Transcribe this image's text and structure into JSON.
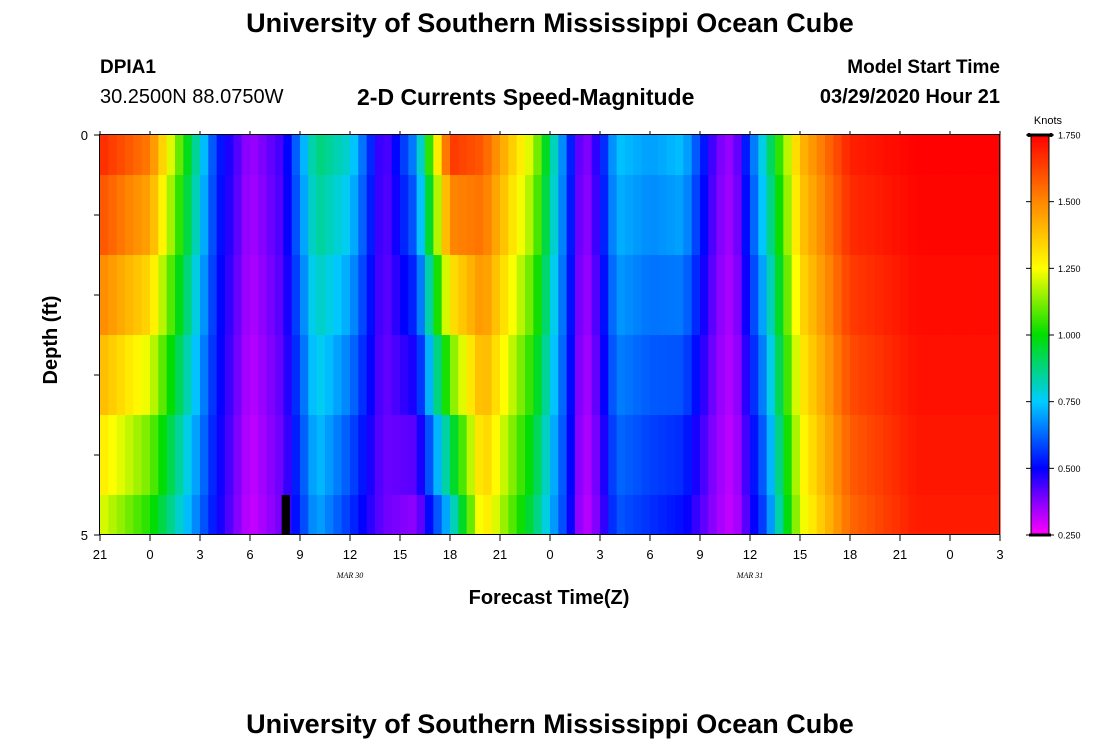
{
  "header": {
    "title": "University of Southern Mississippi Ocean Cube",
    "station": "DPIA1",
    "coords": "30.2500N 88.0750W",
    "subtitle": "2-D Currents Speed-Magnitude",
    "model_label": "Model Start Time",
    "model_time": "03/29/2020 Hour 21"
  },
  "footer": {
    "title": "University of Southern Mississippi Ocean Cube"
  },
  "chart_data": {
    "type": "heatmap",
    "title": "2-D Currents Speed-Magnitude",
    "xlabel": "Forecast Time(Z)",
    "ylabel": "Depth (ft)",
    "x_tick_labels": [
      "21",
      "0",
      "3",
      "6",
      "9",
      "12",
      "15",
      "18",
      "21",
      "0",
      "3",
      "6",
      "9",
      "12",
      "15",
      "18",
      "21",
      "0",
      "3"
    ],
    "x_range_hours": [
      0,
      54
    ],
    "y_range": [
      0,
      5
    ],
    "y_tick_labels": [
      "0",
      "5"
    ],
    "date_labels": [
      {
        "text": "MAR  30",
        "hour": 15
      },
      {
        "text": "MAR  31",
        "hour": 39
      }
    ],
    "depth_layers": [
      {
        "from": 0,
        "to": 0.5
      },
      {
        "from": 0.5,
        "to": 1.5
      },
      {
        "from": 1.5,
        "to": 2.5
      },
      {
        "from": 2.5,
        "to": 3.5
      },
      {
        "from": 3.5,
        "to": 4.5
      },
      {
        "from": 4.5,
        "to": 5
      }
    ],
    "colorbar": {
      "unit": "Knots",
      "min": 0.25,
      "max": 1.75,
      "ticks": [
        "1.750",
        "1.500",
        "1.250",
        "1.000",
        "0.750",
        "0.500",
        "0.250"
      ]
    },
    "speed_profile_knots": [
      {
        "hour": 0,
        "surface": 1.7,
        "bottom": 1.2
      },
      {
        "hour": 3,
        "surface": 1.55,
        "bottom": 1.0
      },
      {
        "hour": 5,
        "surface": 1.05,
        "bottom": 0.75
      },
      {
        "hour": 7,
        "surface": 0.55,
        "bottom": 0.5
      },
      {
        "hour": 9,
        "surface": 0.35,
        "bottom": 0.3
      },
      {
        "hour": 11,
        "surface": 0.45,
        "bottom": 0.4
      },
      {
        "hour": 13,
        "surface": 0.9,
        "bottom": 0.7
      },
      {
        "hour": 15,
        "surface": 0.8,
        "bottom": 0.55
      },
      {
        "hour": 17,
        "surface": 0.4,
        "bottom": 0.4
      },
      {
        "hour": 19,
        "surface": 0.7,
        "bottom": 0.35
      },
      {
        "hour": 21,
        "surface": 1.7,
        "bottom": 0.7
      },
      {
        "hour": 23,
        "surface": 1.6,
        "bottom": 1.3
      },
      {
        "hour": 26,
        "surface": 1.2,
        "bottom": 0.9
      },
      {
        "hour": 28,
        "surface": 0.6,
        "bottom": 0.55
      },
      {
        "hour": 29,
        "surface": 0.35,
        "bottom": 0.3
      },
      {
        "hour": 30,
        "surface": 0.5,
        "bottom": 0.4
      },
      {
        "hour": 31,
        "surface": 0.75,
        "bottom": 0.6
      },
      {
        "hour": 33,
        "surface": 0.7,
        "bottom": 0.55
      },
      {
        "hour": 35,
        "surface": 0.75,
        "bottom": 0.5
      },
      {
        "hour": 37,
        "surface": 0.4,
        "bottom": 0.35
      },
      {
        "hour": 38,
        "surface": 0.35,
        "bottom": 0.3
      },
      {
        "hour": 40,
        "surface": 0.85,
        "bottom": 0.6
      },
      {
        "hour": 42,
        "surface": 1.4,
        "bottom": 1.2
      },
      {
        "hour": 45,
        "surface": 1.7,
        "bottom": 1.55
      },
      {
        "hour": 49,
        "surface": 1.75,
        "bottom": 1.7
      },
      {
        "hour": 54,
        "surface": 1.75,
        "bottom": 1.7
      }
    ],
    "missing_data": [
      {
        "hour_from": 10.9,
        "hour_to": 11.4,
        "depth_from": 4.5,
        "depth_to": 5
      }
    ]
  }
}
